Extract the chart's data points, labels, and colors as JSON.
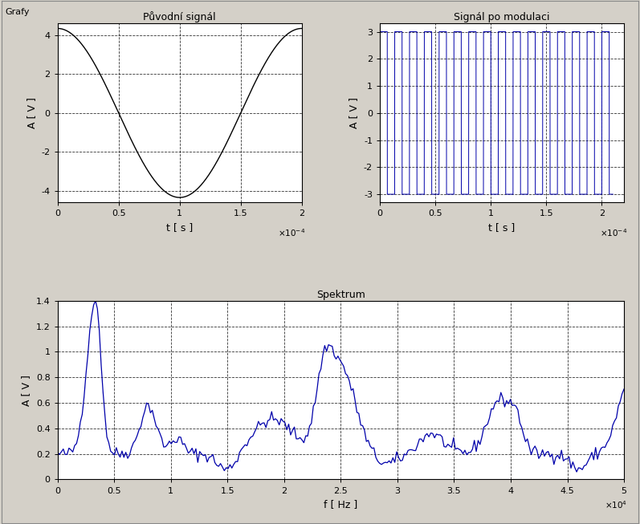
{
  "title_top": "Grafy",
  "plot1_title": "Původní signál",
  "plot2_title": "Signál po modulaci",
  "plot3_title": "Spektrum",
  "plot1_xlabel": "t [ s ]",
  "plot1_ylabel": "A [ V ]",
  "plot2_xlabel": "t [ s ]",
  "plot2_ylabel": "A [ V ]",
  "plot3_xlabel": "f [ Hz ]",
  "plot3_ylabel": "A [ V ]",
  "plot1_xlim": [
    0,
    0.0002
  ],
  "plot1_ylim": [
    -4.6,
    4.6
  ],
  "plot2_xlim": [
    0,
    0.00022
  ],
  "plot2_ylim": [
    -3.3,
    3.3
  ],
  "plot3_xlim": [
    0,
    50000.0
  ],
  "plot3_ylim": [
    0,
    1.4
  ],
  "line_color_1": "#000000",
  "line_color_2": "#0000aa",
  "line_color_3": "#0000aa",
  "bg_color": "#d4d0c8",
  "plot_bg_color": "#ffffff",
  "grid_color": "#000000",
  "font_size_title": 9,
  "font_size_label": 9,
  "font_size_tick": 8,
  "font_size_grafy": 8,
  "signal1_amplitude": 4.35,
  "signal1_freq": 5000,
  "signal2_amplitude": 3.0,
  "signal2_freq": 75000,
  "spectrum_pts": 300
}
